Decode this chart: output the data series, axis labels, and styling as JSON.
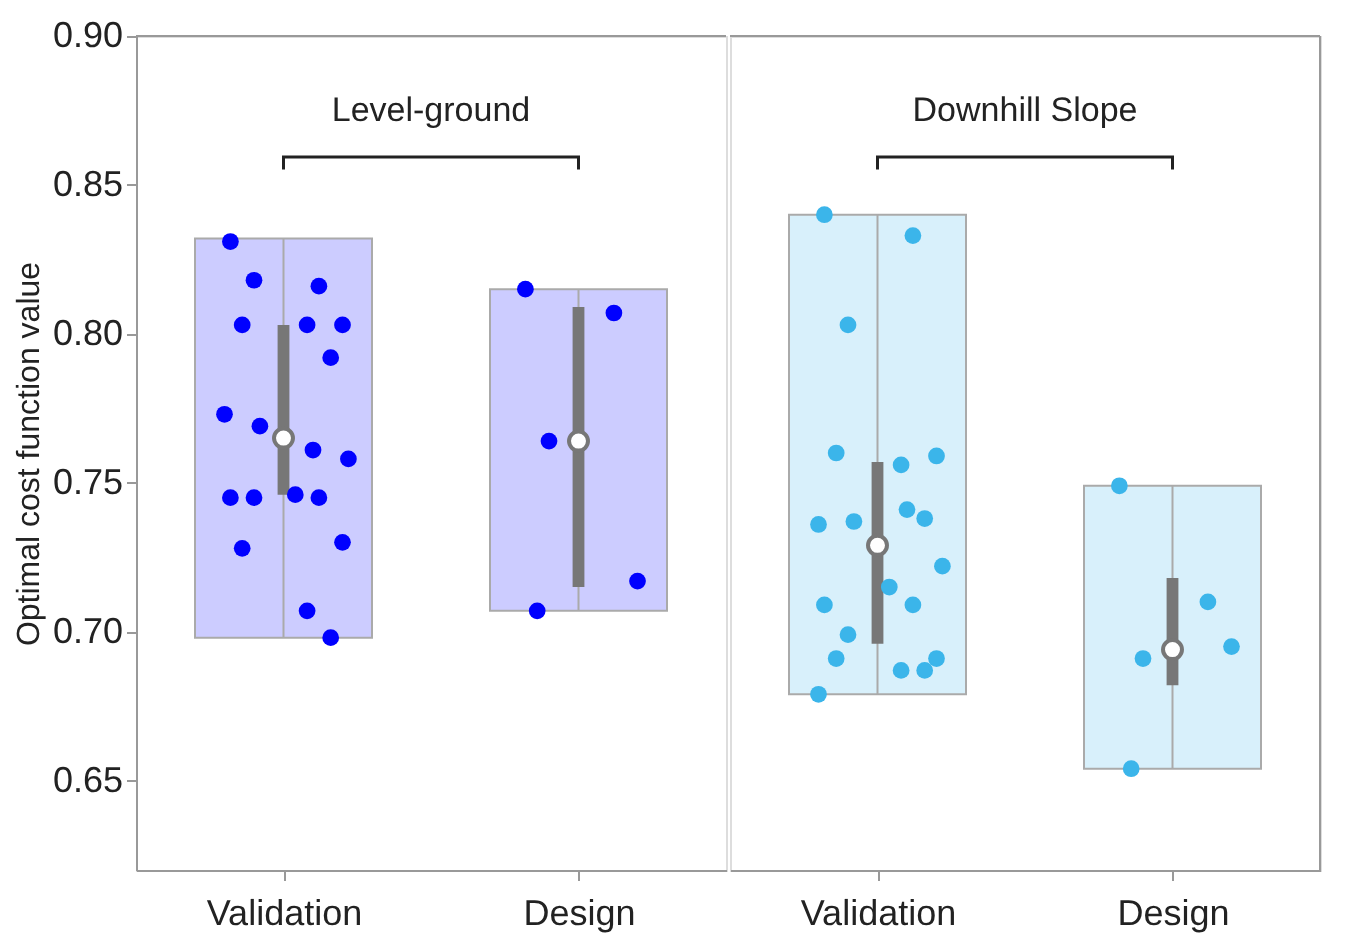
{
  "chart_data": [
    {
      "type": "box",
      "categories": [
        "Validation",
        "Design"
      ],
      "ylabel": "Optimal cost function value",
      "ylim": [
        0.62,
        0.9
      ],
      "yticks": [
        0.65,
        {
          "value": 0.7,
          "label": "0.70"
        },
        0.75,
        {
          "value": 0.8,
          "label": "0.80"
        },
        0.85,
        {
          "value": 0.9,
          "label": "0.90"
        }
      ],
      "grid": false,
      "marker": "circle",
      "colors": [
        "#777777",
        "#777777"
      ],
      "boxes": [
        {
          "low": 0.698,
          "q1": 0.746,
          "median": 0.765,
          "q3": 0.803,
          "high": 0.832
        },
        {
          "low": 0.707,
          "q1": 0.715,
          "median": 0.764,
          "q3": 0.809,
          "high": 0.815
        }
      ],
      "series": [
        {
          "type": "scatter",
          "color": "#0000ff",
          "x": [
            "Validation",
            "Validation",
            "Validation",
            "Validation",
            "Validation",
            "Validation",
            "Validation",
            "Validation",
            "Validation",
            "Validation",
            "Validation",
            "Validation",
            "Validation",
            "Validation",
            "Validation",
            "Validation",
            "Validation",
            "Validation",
            "Validation"
          ],
          "values": [
            0.831,
            0.816,
            0.818,
            0.803,
            0.803,
            0.803,
            0.792,
            0.773,
            0.761,
            0.769,
            0.758,
            0.746,
            0.745,
            0.745,
            0.745,
            0.73,
            0.728,
            0.707,
            0.698
          ]
        },
        {
          "type": "scatter",
          "color": "#0000ff",
          "x": [
            "Design",
            "Design",
            "Design",
            "Design",
            "Design"
          ],
          "values": [
            0.815,
            0.807,
            0.764,
            0.717,
            0.707
          ]
        }
      ],
      "annotations": [
        "Level-ground"
      ]
    },
    {
      "type": "box",
      "categories": [
        "Validation",
        "Design"
      ],
      "ylim": [
        0.62,
        0.9
      ],
      "tick_labels": "x",
      "grid": false,
      "marker": "circle",
      "colors": [
        "#777777",
        "#777777"
      ],
      "boxes": [
        {
          "low": 0.679,
          "q1": 0.696,
          "median": 0.729,
          "q3": 0.757,
          "high": 0.84
        },
        {
          "low": 0.654,
          "q1": 0.682,
          "median": 0.694,
          "q3": 0.718,
          "high": 0.749
        }
      ],
      "series": [
        {
          "type": "scatter",
          "color": "#3bb5ea",
          "x": [
            "Validation",
            "Validation",
            "Validation",
            "Validation",
            "Validation",
            "Validation",
            "Validation",
            "Validation",
            "Validation",
            "Validation",
            "Validation",
            "Validation",
            "Validation",
            "Validation",
            "Validation",
            "Validation",
            "Validation",
            "Validation",
            "Validation",
            "Validation"
          ],
          "values": [
            0.84,
            0.833,
            0.803,
            0.759,
            0.76,
            0.756,
            0.738,
            0.736,
            0.741,
            0.737,
            0.722,
            0.715,
            0.709,
            0.709,
            0.699,
            0.691,
            0.691,
            0.687,
            0.687,
            0.679
          ]
        },
        {
          "type": "scatter",
          "color": "#3bb5ea",
          "x": [
            "Design",
            "Design",
            "Design",
            "Design",
            "Design"
          ],
          "values": [
            0.749,
            0.71,
            0.691,
            0.695,
            0.654
          ]
        }
      ],
      "annotations": [
        "Downhill Slope"
      ]
    }
  ]
}
